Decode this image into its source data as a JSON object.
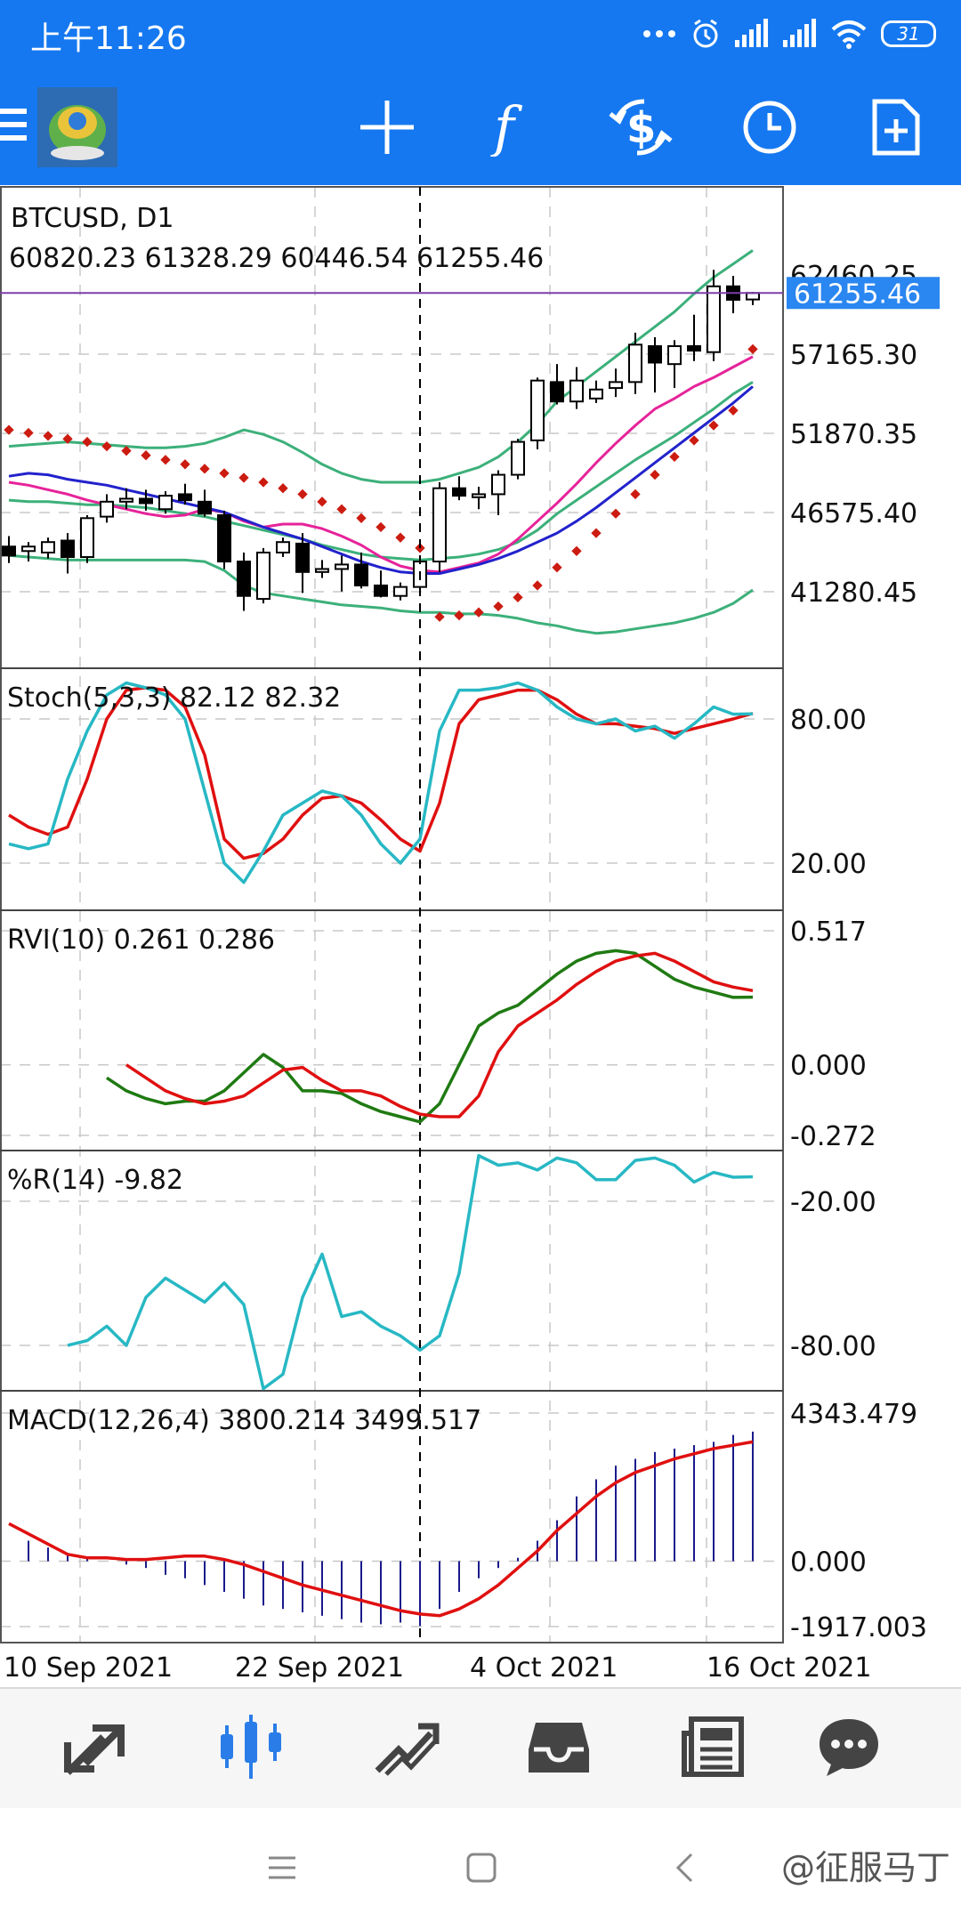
{
  "status_bar": {
    "time": "上午11:26",
    "battery": "31"
  },
  "toolbar": {
    "icons": [
      "menu-icon",
      "metatrader-logo",
      "crosshair-icon",
      "function-icon",
      "currency-exchange-icon",
      "clock-icon",
      "new-document-icon"
    ]
  },
  "chart": {
    "symbol_label": "BTCUSD, D1",
    "ohlc_label": "60820.23 61328.29 60446.54 61255.46",
    "current_price": "61255.46",
    "main_price_axis": [
      "62460.25",
      "57165.30",
      "51870.35",
      "46575.40",
      "41280.45"
    ],
    "main_price_values": [
      62460.25,
      57165.3,
      51870.35,
      46575.4,
      41280.45
    ],
    "date_labels": [
      "10 Sep 2021",
      "22 Sep 2021",
      "4 Oct 2021",
      "16 Oct 2021"
    ],
    "candles": [
      {
        "o": 44300,
        "h": 45000,
        "l": 43200,
        "c": 43700
      },
      {
        "o": 44000,
        "h": 44600,
        "l": 43300,
        "c": 44300
      },
      {
        "o": 43900,
        "h": 44900,
        "l": 43500,
        "c": 44600
      },
      {
        "o": 44700,
        "h": 45200,
        "l": 42500,
        "c": 43600
      },
      {
        "o": 43600,
        "h": 46400,
        "l": 43200,
        "c": 46200
      },
      {
        "o": 46300,
        "h": 47800,
        "l": 45900,
        "c": 47300
      },
      {
        "o": 47300,
        "h": 48200,
        "l": 46800,
        "c": 47500
      },
      {
        "o": 47500,
        "h": 48100,
        "l": 46700,
        "c": 47200
      },
      {
        "o": 46800,
        "h": 48000,
        "l": 46500,
        "c": 47700
      },
      {
        "o": 47800,
        "h": 48500,
        "l": 47100,
        "c": 47400
      },
      {
        "o": 47300,
        "h": 48100,
        "l": 46300,
        "c": 46500
      },
      {
        "o": 46400,
        "h": 46700,
        "l": 42800,
        "c": 43300
      },
      {
        "o": 43300,
        "h": 43900,
        "l": 40000,
        "c": 41000
      },
      {
        "o": 40800,
        "h": 44200,
        "l": 40500,
        "c": 43900
      },
      {
        "o": 43900,
        "h": 44900,
        "l": 43600,
        "c": 44600
      },
      {
        "o": 44500,
        "h": 45200,
        "l": 41200,
        "c": 42600
      },
      {
        "o": 42600,
        "h": 43400,
        "l": 42200,
        "c": 42800
      },
      {
        "o": 42800,
        "h": 43700,
        "l": 41300,
        "c": 43100
      },
      {
        "o": 43100,
        "h": 43900,
        "l": 41500,
        "c": 41700
      },
      {
        "o": 41700,
        "h": 42700,
        "l": 40900,
        "c": 41000
      },
      {
        "o": 41000,
        "h": 41900,
        "l": 40700,
        "c": 41600
      },
      {
        "o": 41600,
        "h": 43500,
        "l": 41300,
        "c": 43300
      },
      {
        "o": 43300,
        "h": 48600,
        "l": 42600,
        "c": 48200
      },
      {
        "o": 48200,
        "h": 49000,
        "l": 47400,
        "c": 47700
      },
      {
        "o": 47600,
        "h": 48300,
        "l": 46800,
        "c": 47800
      },
      {
        "o": 47800,
        "h": 49400,
        "l": 46400,
        "c": 49100
      },
      {
        "o": 49100,
        "h": 51500,
        "l": 48800,
        "c": 51300
      },
      {
        "o": 51400,
        "h": 55600,
        "l": 50800,
        "c": 55400
      },
      {
        "o": 55300,
        "h": 56500,
        "l": 53800,
        "c": 54000
      },
      {
        "o": 54000,
        "h": 56300,
        "l": 53500,
        "c": 55400
      },
      {
        "o": 54200,
        "h": 55400,
        "l": 53900,
        "c": 54800
      },
      {
        "o": 54900,
        "h": 56200,
        "l": 54300,
        "c": 55300
      },
      {
        "o": 55300,
        "h": 58600,
        "l": 54500,
        "c": 57800
      },
      {
        "o": 57700,
        "h": 58300,
        "l": 54600,
        "c": 56600
      },
      {
        "o": 56500,
        "h": 58100,
        "l": 54900,
        "c": 57700
      },
      {
        "o": 57700,
        "h": 59800,
        "l": 56700,
        "c": 57400
      },
      {
        "o": 57300,
        "h": 62800,
        "l": 56700,
        "c": 61700
      },
      {
        "o": 61700,
        "h": 62400,
        "l": 59900,
        "c": 60800
      },
      {
        "o": 60820.23,
        "h": 61328.29,
        "l": 60446.54,
        "c": 61255.46
      }
    ],
    "bb_upper": [
      51000,
      51100,
      51200,
      51300,
      51200,
      51100,
      51000,
      50900,
      50900,
      51000,
      51200,
      51600,
      52100,
      51800,
      51300,
      50600,
      49800,
      49200,
      48800,
      48600,
      48600,
      48600,
      48800,
      49200,
      49600,
      50300,
      51300,
      52500,
      54000,
      55000,
      56000,
      57000,
      58000,
      59000,
      60000,
      61200,
      62300,
      63200,
      64100
    ],
    "bb_lower": [
      43700,
      43600,
      43500,
      43400,
      43400,
      43400,
      43400,
      43400,
      43400,
      43400,
      43300,
      42700,
      41700,
      41200,
      41000,
      40800,
      40600,
      40400,
      40300,
      40200,
      40000,
      39900,
      39900,
      39800,
      39800,
      39700,
      39500,
      39200,
      39000,
      38700,
      38500,
      38600,
      38800,
      39000,
      39200,
      39500,
      39900,
      40500,
      41400
    ],
    "bb_middle": [
      47400,
      47300,
      47300,
      47200,
      47100,
      47100,
      47000,
      46900,
      46700,
      46500,
      46300,
      46000,
      45700,
      45400,
      45100,
      44800,
      44400,
      44100,
      43800,
      43600,
      43500,
      43400,
      43500,
      43600,
      43800,
      44100,
      44600,
      45400,
      46500,
      47400,
      48300,
      49200,
      50100,
      50900,
      51700,
      52600,
      53500,
      54500,
      55300
    ],
    "ma_pink": [
      48600,
      48400,
      48100,
      47800,
      47400,
      47100,
      46800,
      46500,
      46300,
      46400,
      46800,
      46600,
      46000,
      45600,
      45800,
      45800,
      45500,
      45000,
      44400,
      43600,
      43000,
      42700,
      42600,
      42900,
      43200,
      43800,
      44800,
      46000,
      47200,
      48500,
      49900,
      51200,
      52400,
      53500,
      54200,
      55000,
      55600,
      56300,
      57000
    ],
    "ma_blue": [
      49000,
      49200,
      49100,
      48800,
      48600,
      48400,
      48100,
      47800,
      47500,
      47200,
      46900,
      46600,
      46100,
      45600,
      45200,
      44800,
      44300,
      43800,
      43300,
      42900,
      42600,
      42500,
      42500,
      42800,
      43100,
      43500,
      44000,
      44600,
      45200,
      46000,
      46900,
      47900,
      48900,
      49900,
      50900,
      51900,
      52900,
      53900,
      55000
    ],
    "sar": [
      52100,
      51900,
      51700,
      51500,
      51300,
      51000,
      50700,
      50400,
      50100,
      49800,
      49500,
      49200,
      48900,
      48600,
      48200,
      47800,
      47300,
      46800,
      46200,
      45600,
      44900,
      44200,
      39600,
      39700,
      39900,
      40300,
      40900,
      41700,
      42900,
      44000,
      45200,
      46500,
      47800,
      49100,
      50300,
      51400,
      52400,
      53400,
      57500
    ],
    "vline_index": 21,
    "stoch": {
      "label": "Stoch(5,3,3) 82.12 82.32",
      "axis": [
        "80.00",
        "20.00"
      ],
      "axis_values": [
        80,
        20
      ],
      "main": [
        28,
        26,
        28,
        55,
        75,
        90,
        95,
        93,
        90,
        80,
        50,
        20,
        12,
        25,
        40,
        45,
        50,
        48,
        40,
        28,
        20,
        30,
        75,
        92,
        92,
        93,
        95,
        92,
        85,
        80,
        78,
        80,
        75,
        77,
        72,
        78,
        85,
        82,
        82.12
      ],
      "signal": [
        40,
        35,
        32,
        35,
        55,
        80,
        92,
        93,
        92,
        85,
        65,
        30,
        22,
        24,
        30,
        40,
        47,
        48,
        45,
        38,
        30,
        25,
        45,
        78,
        88,
        90,
        92,
        92,
        88,
        82,
        78,
        78,
        77,
        76,
        74,
        76,
        78,
        80,
        82.32
      ]
    },
    "rvi": {
      "label": "RVI(10) 0.261 0.286",
      "axis": [
        "0.517",
        "0.000",
        "-0.272"
      ],
      "axis_values": [
        0.517,
        0.0,
        -0.272
      ],
      "main": [
        -0.05,
        -0.1,
        -0.13,
        -0.15,
        -0.14,
        -0.14,
        -0.1,
        -0.03,
        0.04,
        -0.01,
        -0.1,
        -0.1,
        -0.11,
        -0.15,
        -0.18,
        -0.2,
        -0.22,
        -0.15,
        0.0,
        0.15,
        0.2,
        0.23,
        0.29,
        0.35,
        0.4,
        0.43,
        0.44,
        0.43,
        0.38,
        0.33,
        0.3,
        0.28,
        0.26,
        0.261
      ],
      "signal": [
        0.0,
        -0.05,
        -0.1,
        -0.13,
        -0.15,
        -0.14,
        -0.12,
        -0.07,
        -0.02,
        -0.01,
        -0.06,
        -0.1,
        -0.1,
        -0.12,
        -0.16,
        -0.19,
        -0.2,
        -0.2,
        -0.12,
        0.05,
        0.15,
        0.2,
        0.25,
        0.31,
        0.36,
        0.4,
        0.42,
        0.43,
        0.4,
        0.36,
        0.32,
        0.3,
        0.286
      ]
    },
    "wpr": {
      "label": "%R(14) -9.82",
      "axis": [
        "-20.00",
        "-80.00"
      ],
      "axis_values": [
        -20,
        -80
      ],
      "values": [
        -80,
        -78,
        -72,
        -80,
        -60,
        -52,
        -57,
        -62,
        -54,
        -63,
        -98,
        -92,
        -60,
        -42,
        -68,
        -66,
        -72,
        -76,
        -82,
        -76,
        -50,
        -1,
        -5,
        -4,
        -7,
        -2,
        -4,
        -11,
        -11,
        -3,
        -2,
        -5,
        -12,
        -8,
        -10,
        -9.82
      ]
    },
    "macd": {
      "label": "MACD(12,26,4) 3800.214 3499.517",
      "axis": [
        "4343.479",
        "0.000",
        "-1917.003"
      ],
      "axis_values": [
        4343.479,
        0.0,
        -1917.003
      ],
      "histogram": [
        600,
        400,
        200,
        100,
        0,
        -100,
        -200,
        -400,
        -500,
        -700,
        -900,
        -1100,
        -1300,
        -1400,
        -1500,
        -1600,
        -1700,
        -1800,
        -1850,
        -1800,
        -1900,
        -1400,
        -900,
        -500,
        -200,
        100,
        600,
        1200,
        1900,
        2400,
        2800,
        3000,
        3200,
        3300,
        3400,
        3500,
        3700,
        3800.214
      ],
      "signal": [
        1100,
        800,
        500,
        200,
        100,
        100,
        50,
        50,
        100,
        150,
        150,
        50,
        -100,
        -300,
        -500,
        -700,
        -850,
        -1000,
        -1150,
        -1300,
        -1450,
        -1550,
        -1600,
        -1400,
        -1100,
        -700,
        -200,
        300,
        900,
        1400,
        1900,
        2300,
        2600,
        2800,
        3000,
        3150,
        3300,
        3400,
        3499.517
      ]
    }
  },
  "bottom_nav": [
    "quotes-icon",
    "chart-icon",
    "trade-icon",
    "history-icon",
    "news-icon",
    "chat-icon"
  ],
  "watermark": "@征服马丁"
}
